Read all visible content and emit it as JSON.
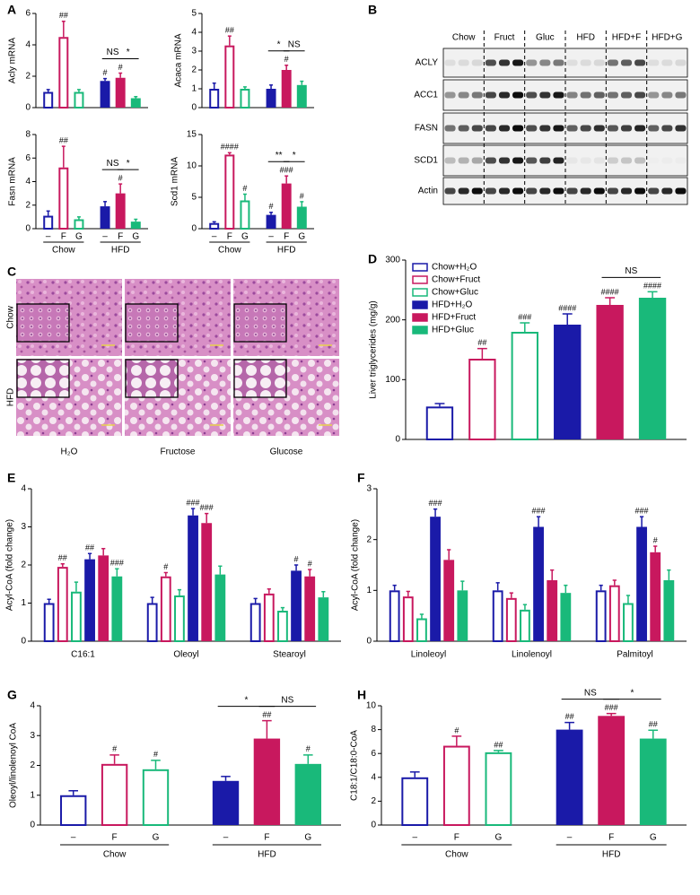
{
  "panel_labels": [
    "A",
    "B",
    "C",
    "D",
    "E",
    "F",
    "G",
    "H"
  ],
  "blot": {
    "lanes": [
      "Chow",
      "Fruct",
      "Gluc",
      "HFD",
      "HFD+F",
      "HFD+G"
    ],
    "proteins": [
      "ACLY",
      "ACC1",
      "FASN",
      "SCD1",
      "Actin"
    ]
  },
  "histology": {
    "rows": [
      "Chow",
      "HFD"
    ],
    "columns": [
      "H₂O",
      "Fructose",
      "Glucose"
    ]
  },
  "chart_data": [
    {
      "type": "bar",
      "ylabel": "Acly mRNA",
      "values": [
        1.0,
        4.5,
        1.0,
        1.7,
        1.9,
        0.6
      ],
      "errors": [
        0.15,
        1.0,
        0.15,
        0.15,
        0.3,
        0.1
      ],
      "marks": [
        null,
        "##",
        null,
        "#",
        "#",
        null
      ],
      "colors": [
        "#1a1aa8",
        "#c8185e",
        "#19b97a",
        "#1a1aa8",
        "#c8185e",
        "#19b97a"
      ],
      "filled": [
        false,
        false,
        false,
        true,
        true,
        true
      ],
      "ylim": [
        0,
        6
      ],
      "yticks": [
        0,
        2,
        4,
        6
      ],
      "brackets": [
        {
          "from": 3,
          "to": 4,
          "label": "NS"
        },
        {
          "from": 4,
          "to": 5,
          "label": "*"
        }
      ]
    },
    {
      "type": "bar",
      "ylabel": "Acaca mRNA",
      "values": [
        1.0,
        3.3,
        1.0,
        1.0,
        2.0,
        1.2
      ],
      "errors": [
        0.3,
        0.5,
        0.1,
        0.2,
        0.25,
        0.2
      ],
      "marks": [
        null,
        "##",
        null,
        null,
        "#",
        null
      ],
      "colors": [
        "#1a1aa8",
        "#c8185e",
        "#19b97a",
        "#1a1aa8",
        "#c8185e",
        "#19b97a"
      ],
      "filled": [
        false,
        false,
        false,
        true,
        true,
        true
      ],
      "ylim": [
        0,
        5
      ],
      "yticks": [
        0,
        1,
        2,
        3,
        4,
        5
      ],
      "brackets": [
        {
          "from": 3,
          "to": 4,
          "label": "*"
        },
        {
          "from": 4,
          "to": 5,
          "label": "NS"
        }
      ]
    },
    {
      "type": "bar",
      "ylabel": "Fasn mRNA",
      "categories": [
        "–",
        "F",
        "G",
        "–",
        "F",
        "G"
      ],
      "groups": [
        "Chow",
        "HFD"
      ],
      "values": [
        1.1,
        5.2,
        0.8,
        1.9,
        3.0,
        0.6
      ],
      "errors": [
        0.4,
        1.8,
        0.2,
        0.4,
        0.8,
        0.2
      ],
      "marks": [
        null,
        "##",
        null,
        null,
        "#",
        null
      ],
      "colors": [
        "#1a1aa8",
        "#c8185e",
        "#19b97a",
        "#1a1aa8",
        "#c8185e",
        "#19b97a"
      ],
      "filled": [
        false,
        false,
        false,
        true,
        true,
        true
      ],
      "ylim": [
        0,
        8
      ],
      "yticks": [
        0,
        2,
        4,
        6,
        8
      ],
      "brackets": [
        {
          "from": 3,
          "to": 4,
          "label": "NS"
        },
        {
          "from": 4,
          "to": 5,
          "label": "*"
        }
      ]
    },
    {
      "type": "bar",
      "ylabel": "Scd1 mRNA",
      "categories": [
        "–",
        "F",
        "G",
        "–",
        "F",
        "G"
      ],
      "groups": [
        "Chow",
        "HFD"
      ],
      "values": [
        0.9,
        11.8,
        4.5,
        2.2,
        7.2,
        3.5
      ],
      "errors": [
        0.2,
        0.3,
        1.0,
        0.4,
        1.2,
        0.8
      ],
      "marks": [
        null,
        "####",
        "#",
        "#",
        "###",
        "#"
      ],
      "colors": [
        "#1a1aa8",
        "#c8185e",
        "#19b97a",
        "#1a1aa8",
        "#c8185e",
        "#19b97a"
      ],
      "filled": [
        false,
        false,
        false,
        true,
        true,
        true
      ],
      "ylim": [
        0,
        15
      ],
      "yticks": [
        0,
        5,
        10,
        15
      ],
      "brackets": [
        {
          "from": 3,
          "to": 4,
          "label": "**"
        },
        {
          "from": 4,
          "to": 5,
          "label": "*"
        }
      ]
    },
    {
      "type": "bar",
      "ylabel": "Liver triglycerides (mg/g)",
      "legend_labels": [
        "Chow+H₂O",
        "Chow+Fruct",
        "Chow+Gluc",
        "HFD+H₂O",
        "HFD+Fruct",
        "HFD+Gluc"
      ],
      "legend": "top-left",
      "values": [
        55,
        135,
        180,
        192,
        225,
        237
      ],
      "errors": [
        5,
        17,
        15,
        18,
        12,
        10
      ],
      "marks": [
        null,
        "##",
        "###",
        "####",
        "####",
        "####"
      ],
      "colors": [
        "#1a1aa8",
        "#c8185e",
        "#19b97a",
        "#1a1aa8",
        "#c8185e",
        "#19b97a"
      ],
      "filled": [
        false,
        false,
        false,
        true,
        true,
        true
      ],
      "ylim": [
        0,
        300
      ],
      "yticks": [
        0,
        100,
        200,
        300
      ],
      "brackets": [
        {
          "from": 4,
          "to": 5,
          "label": "NS"
        }
      ]
    },
    {
      "type": "grouped_bar",
      "ylabel": "Acyl-CoA (fold change)",
      "categories": [
        "C16:1",
        "Oleoyl",
        "Stearoyl"
      ],
      "ylim": [
        0,
        4
      ],
      "yticks": [
        0,
        1,
        2,
        3,
        4
      ],
      "series": [
        {
          "color": "#1a1aa8",
          "filled": false,
          "values": [
            1.0,
            1.0,
            1.0
          ],
          "errors": [
            0.1,
            0.15,
            0.12
          ],
          "marks": [
            null,
            null,
            null
          ]
        },
        {
          "color": "#c8185e",
          "filled": false,
          "values": [
            1.95,
            1.7,
            1.25
          ],
          "errors": [
            0.08,
            0.1,
            0.12
          ],
          "marks": [
            "##",
            "#",
            null
          ]
        },
        {
          "color": "#19b97a",
          "filled": false,
          "values": [
            1.3,
            1.2,
            0.8
          ],
          "errors": [
            0.25,
            0.15,
            0.08
          ],
          "marks": [
            null,
            null,
            null
          ]
        },
        {
          "color": "#1a1aa8",
          "filled": true,
          "values": [
            2.15,
            3.3,
            1.85
          ],
          "errors": [
            0.15,
            0.18,
            0.15
          ],
          "marks": [
            "##",
            "###",
            "#"
          ]
        },
        {
          "color": "#c8185e",
          "filled": true,
          "values": [
            2.25,
            3.1,
            1.7
          ],
          "errors": [
            0.18,
            0.25,
            0.18
          ],
          "marks": [
            null,
            "###",
            "#"
          ]
        },
        {
          "color": "#19b97a",
          "filled": true,
          "values": [
            1.7,
            1.75,
            1.15
          ],
          "errors": [
            0.2,
            0.22,
            0.15
          ],
          "marks": [
            "###",
            null,
            null
          ]
        }
      ]
    },
    {
      "type": "grouped_bar",
      "ylabel": "Acyl-CoA (fold change)",
      "categories": [
        "Linoleoyl",
        "Linolenoyl",
        "Palmitoyl"
      ],
      "ylim": [
        0,
        3
      ],
      "yticks": [
        0,
        1,
        2,
        3
      ],
      "series": [
        {
          "color": "#1a1aa8",
          "filled": false,
          "values": [
            1.0,
            1.0,
            1.0
          ],
          "errors": [
            0.1,
            0.15,
            0.1
          ],
          "marks": [
            null,
            null,
            null
          ]
        },
        {
          "color": "#c8185e",
          "filled": false,
          "values": [
            0.88,
            0.85,
            1.1
          ],
          "errors": [
            0.1,
            0.1,
            0.1
          ],
          "marks": [
            null,
            null,
            null
          ]
        },
        {
          "color": "#19b97a",
          "filled": false,
          "values": [
            0.45,
            0.62,
            0.75
          ],
          "errors": [
            0.08,
            0.1,
            0.15
          ],
          "marks": [
            null,
            null,
            null
          ]
        },
        {
          "color": "#1a1aa8",
          "filled": true,
          "values": [
            2.45,
            2.25,
            2.25
          ],
          "errors": [
            0.15,
            0.2,
            0.2
          ],
          "marks": [
            "###",
            "###",
            "###"
          ]
        },
        {
          "color": "#c8185e",
          "filled": true,
          "values": [
            1.6,
            1.2,
            1.75
          ],
          "errors": [
            0.2,
            0.2,
            0.12
          ],
          "marks": [
            null,
            null,
            "#"
          ]
        },
        {
          "color": "#19b97a",
          "filled": true,
          "values": [
            1.0,
            0.95,
            1.2
          ],
          "errors": [
            0.18,
            0.15,
            0.2
          ],
          "marks": [
            null,
            null,
            null
          ]
        }
      ]
    },
    {
      "type": "bar",
      "ylabel": "Oleoyl/linolenoyl CoA",
      "categories": [
        "–",
        "F",
        "G",
        "–",
        "F",
        "G"
      ],
      "groups": [
        "Chow",
        "HFD"
      ],
      "values": [
        1.0,
        2.05,
        1.87,
        1.48,
        2.9,
        2.05
      ],
      "errors": [
        0.15,
        0.3,
        0.3,
        0.15,
        0.6,
        0.3
      ],
      "marks": [
        null,
        "#",
        "#",
        null,
        "##",
        "#"
      ],
      "colors": [
        "#1a1aa8",
        "#c8185e",
        "#19b97a",
        "#1a1aa8",
        "#c8185e",
        "#19b97a"
      ],
      "filled": [
        false,
        false,
        false,
        true,
        true,
        true
      ],
      "ylim": [
        0,
        4
      ],
      "yticks": [
        0,
        1,
        2,
        3,
        4
      ],
      "brackets": [
        {
          "from": 3,
          "to": 4,
          "label": "*"
        },
        {
          "from": 4,
          "to": 5,
          "label": "NS"
        }
      ]
    },
    {
      "type": "bar",
      "ylabel": "C18:1/C18:0-CoA",
      "categories": [
        "–",
        "F",
        "G",
        "–",
        "F",
        "G"
      ],
      "groups": [
        "Chow",
        "HFD"
      ],
      "values": [
        4.0,
        6.65,
        6.1,
        8.0,
        9.15,
        7.25
      ],
      "errors": [
        0.45,
        0.8,
        0.15,
        0.6,
        0.2,
        0.7
      ],
      "marks": [
        null,
        "#",
        "##",
        "##",
        "###",
        "##"
      ],
      "colors": [
        "#1a1aa8",
        "#c8185e",
        "#19b97a",
        "#1a1aa8",
        "#c8185e",
        "#19b97a"
      ],
      "filled": [
        false,
        false,
        false,
        true,
        true,
        true
      ],
      "ylim": [
        0,
        10
      ],
      "yticks": [
        0,
        2,
        4,
        6,
        8,
        10
      ],
      "brackets": [
        {
          "from": 3,
          "to": 4,
          "label": "NS"
        },
        {
          "from": 4,
          "to": 5,
          "label": "*"
        }
      ]
    }
  ]
}
